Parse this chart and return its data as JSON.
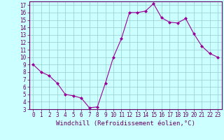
{
  "x": [
    0,
    1,
    2,
    3,
    4,
    5,
    6,
    7,
    8,
    9,
    10,
    11,
    12,
    13,
    14,
    15,
    16,
    17,
    18,
    19,
    20,
    21,
    22,
    23
  ],
  "y": [
    9,
    8,
    7.5,
    6.5,
    5,
    4.8,
    4.5,
    3.2,
    3.3,
    6.5,
    10,
    12.5,
    16,
    16,
    16.2,
    17.2,
    15.3,
    14.7,
    14.6,
    15.2,
    13.2,
    11.5,
    10.5,
    10
  ],
  "line_color": "#990099",
  "marker": "D",
  "marker_size": 2,
  "bg_color": "#ccffff",
  "grid_color": "#99cccc",
  "xlabel": "Windchill (Refroidissement éolien,°C)",
  "xlabel_fontsize": 6.5,
  "ylim": [
    3,
    17.5
  ],
  "xlim": [
    -0.5,
    23.5
  ],
  "xtick_fontsize": 5.5,
  "ytick_fontsize": 5.5,
  "spine_color": "#660066",
  "figsize": [
    3.2,
    2.0
  ],
  "dpi": 100,
  "ytick_vals": [
    3,
    4,
    5,
    6,
    7,
    8,
    9,
    10,
    11,
    12,
    13,
    14,
    15,
    16,
    17
  ],
  "xtick_vals": [
    0,
    1,
    2,
    3,
    4,
    5,
    6,
    7,
    8,
    9,
    10,
    11,
    12,
    13,
    14,
    15,
    16,
    17,
    18,
    19,
    20,
    21,
    22,
    23
  ]
}
